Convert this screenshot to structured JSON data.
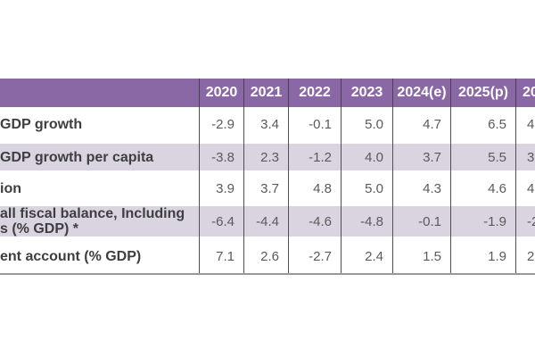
{
  "colors": {
    "header_bg": "#8a68a6",
    "header_text": "#ffffff",
    "band_bg": "#d9d4e0",
    "label_text": "#3e3e40",
    "value_text": "#5a5a5c",
    "divider": "#504f53",
    "bottom_border": "#98979b"
  },
  "chart_data": {
    "type": "table",
    "note": "table cropped at left and right edges; label and last-column texts are visible fragments",
    "columns": [
      "",
      "2020",
      "2021",
      "2022",
      "2023",
      "2024(e)",
      "2025(p)",
      "20"
    ],
    "rows": [
      {
        "label": "GDP growth",
        "values": [
          "-2.9",
          "3.4",
          "-0.1",
          "5.0",
          "4.7",
          "6.5",
          "4"
        ]
      },
      {
        "label": "GDP growth per capita",
        "values": [
          "-3.8",
          "2.3",
          "-1.2",
          "4.0",
          "3.7",
          "5.5",
          "3"
        ]
      },
      {
        "label": "ion",
        "values": [
          "3.9",
          "3.7",
          "4.8",
          "5.0",
          "4.3",
          "4.6",
          "4"
        ]
      },
      {
        "label": "all fiscal balance, Including",
        "label_line2": "s (% GDP) *",
        "values": [
          "-6.4",
          "-4.4",
          "-4.6",
          "-4.8",
          "-0.1",
          "-1.9",
          "-2"
        ]
      },
      {
        "label": "ent account (% GDP)",
        "values": [
          "7.1",
          "2.6",
          "-2.7",
          "2.4",
          "1.5",
          "1.9",
          "2"
        ]
      }
    ]
  }
}
